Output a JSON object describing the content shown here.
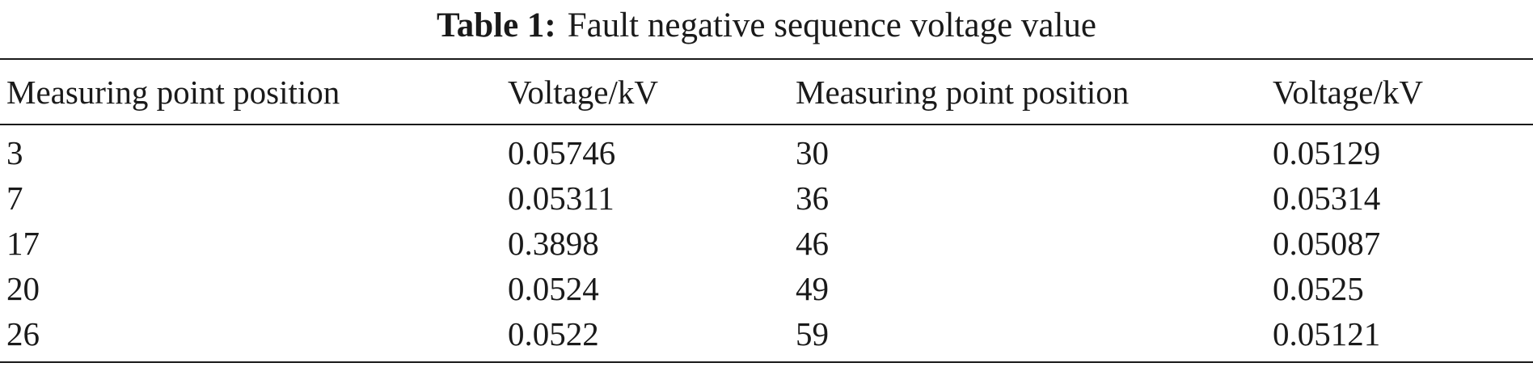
{
  "caption": {
    "label": "Table 1:",
    "text": "Fault negative sequence voltage value"
  },
  "table": {
    "headers": [
      "Measuring point position",
      "Voltage/kV",
      "Measuring point position",
      "Voltage/kV"
    ],
    "rows": [
      [
        "3",
        "0.05746",
        "30",
        "0.05129"
      ],
      [
        "7",
        "0.05311",
        "36",
        "0.05314"
      ],
      [
        "17",
        "0.3898",
        "46",
        "0.05087"
      ],
      [
        "20",
        "0.0524",
        "49",
        "0.0525"
      ],
      [
        "26",
        "0.0522",
        "59",
        "0.05121"
      ]
    ]
  }
}
